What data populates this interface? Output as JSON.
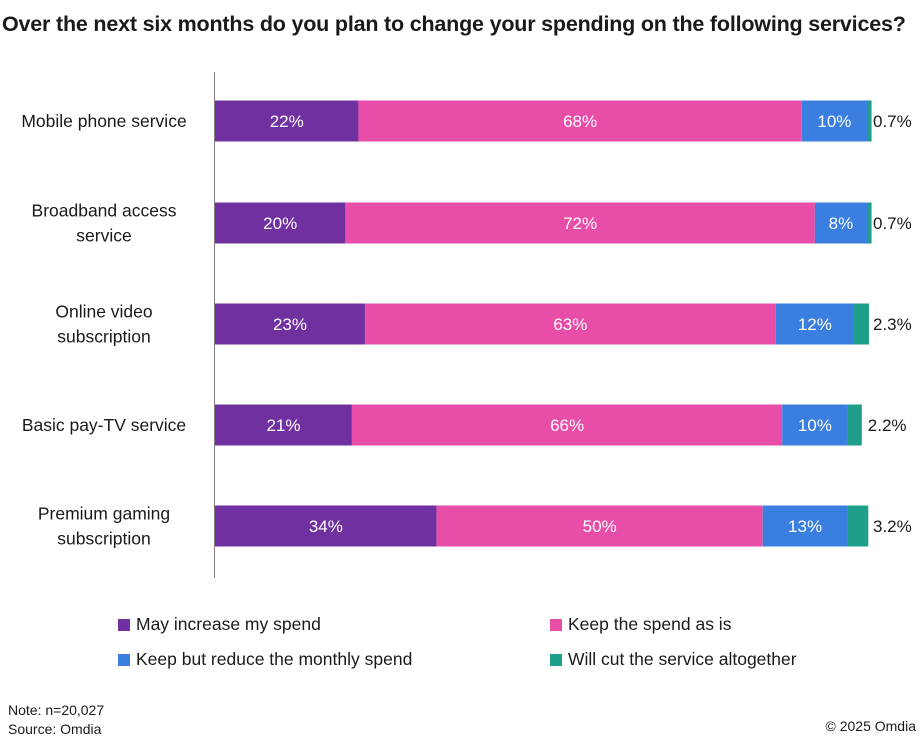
{
  "chart_data": {
    "type": "bar",
    "orientation": "horizontal",
    "stacked": true,
    "title": "Over the next six months do you plan to change your spending on the following services?",
    "categories": [
      [
        "Mobile phone service"
      ],
      [
        "Broadband access",
        "service"
      ],
      [
        "Online video",
        "subscription"
      ],
      [
        "Basic pay-TV service"
      ],
      [
        "Premium gaming",
        "subscription"
      ]
    ],
    "series": [
      {
        "name": "May increase my spend",
        "color": "#7030a0",
        "values": [
          22,
          20,
          23,
          21,
          34
        ],
        "labels": [
          "22%",
          "20%",
          "23%",
          "21%",
          "34%"
        ]
      },
      {
        "name": "Keep the spend as is",
        "color": "#e84ea8",
        "values": [
          68,
          72,
          63,
          66,
          50
        ],
        "labels": [
          "68%",
          "72%",
          "63%",
          "66%",
          "50%"
        ]
      },
      {
        "name": "Keep but reduce the monthly spend",
        "color": "#3a7ee0",
        "values": [
          10,
          8,
          12,
          10,
          13
        ],
        "labels": [
          "10%",
          "8%",
          "12%",
          "10%",
          "13%"
        ]
      },
      {
        "name": "Will cut the service altogether",
        "color": "#1f9e89",
        "values": [
          0.7,
          0.7,
          2.3,
          2.2,
          3.2
        ],
        "labels": [
          "0.7%",
          "0.7%",
          "2.3%",
          "2.2%",
          "3.2%"
        ]
      }
    ],
    "xlim": [
      0,
      100
    ],
    "grid": false,
    "legend_position": "bottom"
  },
  "note": "Note: n=20,027",
  "source": "Source: Omdia",
  "copyright": "© 2025 Omdia"
}
